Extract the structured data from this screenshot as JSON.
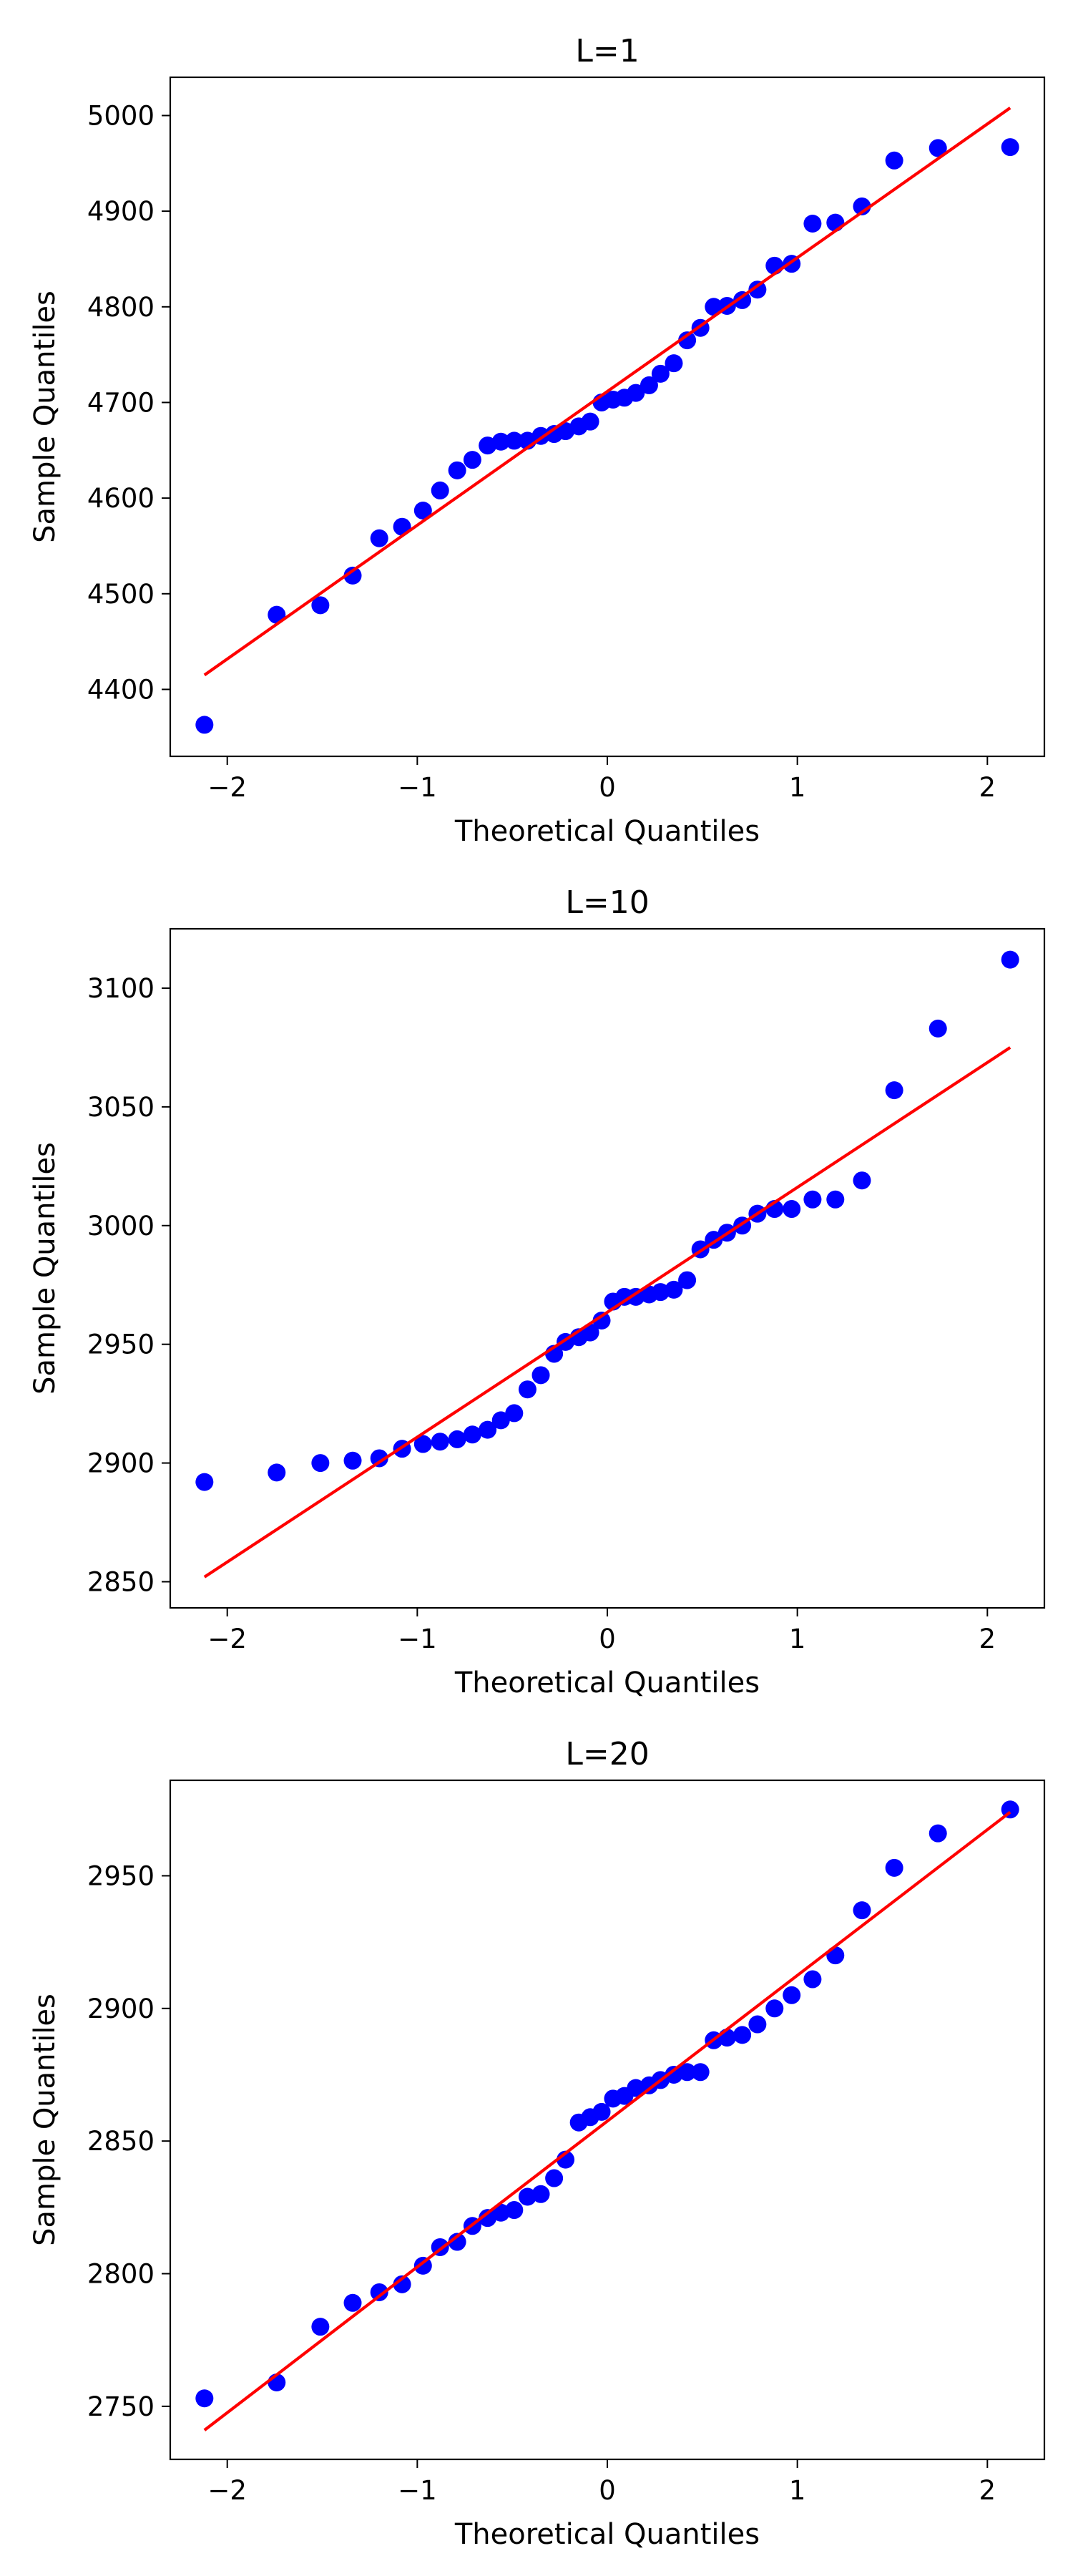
{
  "chart_data": [
    {
      "type": "scatter",
      "title": "L=1",
      "xlabel": "Theoretical Quantiles",
      "ylabel": "Sample Quantiles",
      "xlim": [
        -2.3,
        2.3
      ],
      "ylim": [
        4330,
        5040
      ],
      "xticks": [
        -2,
        -1,
        0,
        1,
        2
      ],
      "xtick_labels": [
        "−2",
        "−1",
        "0",
        "1",
        "2"
      ],
      "yticks": [
        4400,
        4500,
        4600,
        4700,
        4800,
        4900,
        5000
      ],
      "ytick_labels": [
        "4400",
        "4500",
        "4600",
        "4700",
        "4800",
        "4900",
        "5000"
      ],
      "point_color": "#0000ff",
      "line_color": "#ff0000",
      "reference_line": {
        "x": [
          -2.12,
          2.12
        ],
        "y": [
          4415,
          5008
        ]
      },
      "x": [
        -2.12,
        -1.74,
        -1.51,
        -1.34,
        -1.2,
        -1.08,
        -0.97,
        -0.88,
        -0.79,
        -0.71,
        -0.63,
        -0.56,
        -0.49,
        -0.42,
        -0.35,
        -0.28,
        -0.22,
        -0.15,
        -0.09,
        -0.03,
        0.03,
        0.09,
        0.15,
        0.22,
        0.28,
        0.35,
        0.42,
        0.49,
        0.56,
        0.63,
        0.71,
        0.79,
        0.88,
        0.97,
        1.08,
        1.2,
        1.34,
        1.51,
        1.74,
        2.12
      ],
      "y": [
        4363,
        4478,
        4488,
        4519,
        4558,
        4570,
        4587,
        4608,
        4629,
        4640,
        4655,
        4659,
        4660,
        4660,
        4665,
        4667,
        4670,
        4675,
        4680,
        4700,
        4703,
        4705,
        4710,
        4718,
        4730,
        4741,
        4765,
        4778,
        4800,
        4801,
        4807,
        4818,
        4843,
        4845,
        4887,
        4888,
        4905,
        4953,
        4966,
        4967
      ]
    },
    {
      "type": "scatter",
      "title": "L=10",
      "xlabel": "Theoretical Quantiles",
      "ylabel": "Sample Quantiles",
      "xlim": [
        -2.3,
        2.3
      ],
      "ylim": [
        2839,
        3125
      ],
      "xticks": [
        -2,
        -1,
        0,
        1,
        2
      ],
      "xtick_labels": [
        "−2",
        "−1",
        "0",
        "1",
        "2"
      ],
      "yticks": [
        2850,
        2900,
        2950,
        3000,
        3050,
        3100
      ],
      "ytick_labels": [
        "2850",
        "2900",
        "2950",
        "3000",
        "3050",
        "3100"
      ],
      "point_color": "#0000ff",
      "line_color": "#ff0000",
      "reference_line": {
        "x": [
          -2.12,
          2.12
        ],
        "y": [
          2852,
          3075
        ]
      },
      "x": [
        -2.12,
        -1.74,
        -1.51,
        -1.34,
        -1.2,
        -1.08,
        -0.97,
        -0.88,
        -0.79,
        -0.71,
        -0.63,
        -0.56,
        -0.49,
        -0.42,
        -0.35,
        -0.28,
        -0.22,
        -0.15,
        -0.09,
        -0.03,
        0.03,
        0.09,
        0.15,
        0.22,
        0.28,
        0.35,
        0.42,
        0.49,
        0.56,
        0.63,
        0.71,
        0.79,
        0.88,
        0.97,
        1.08,
        1.2,
        1.34,
        1.51,
        1.74,
        2.12
      ],
      "y": [
        2892,
        2896,
        2900,
        2901,
        2902,
        2906,
        2908,
        2909,
        2910,
        2912,
        2914,
        2918,
        2921,
        2931,
        2937,
        2946,
        2951,
        2953,
        2955,
        2960,
        2968,
        2970,
        2970,
        2971,
        2972,
        2973,
        2977,
        2990,
        2994,
        2997,
        3000,
        3005,
        3007,
        3007,
        3011,
        3011,
        3019,
        3057,
        3083,
        3112
      ]
    },
    {
      "type": "scatter",
      "title": "L=20",
      "xlabel": "Theoretical Quantiles",
      "ylabel": "Sample Quantiles",
      "xlim": [
        -2.3,
        2.3
      ],
      "ylim": [
        2730,
        2986
      ],
      "xticks": [
        -2,
        -1,
        0,
        1,
        2
      ],
      "xtick_labels": [
        "−2",
        "−1",
        "0",
        "1",
        "2"
      ],
      "yticks": [
        2750,
        2800,
        2850,
        2900,
        2950
      ],
      "ytick_labels": [
        "2750",
        "2800",
        "2850",
        "2900",
        "2950"
      ],
      "point_color": "#0000ff",
      "line_color": "#ff0000",
      "reference_line": {
        "x": [
          -2.12,
          2.12
        ],
        "y": [
          2741,
          2974
        ]
      },
      "x": [
        -2.12,
        -1.74,
        -1.51,
        -1.34,
        -1.2,
        -1.08,
        -0.97,
        -0.88,
        -0.79,
        -0.71,
        -0.63,
        -0.56,
        -0.49,
        -0.42,
        -0.35,
        -0.28,
        -0.22,
        -0.15,
        -0.09,
        -0.03,
        0.03,
        0.09,
        0.15,
        0.22,
        0.28,
        0.35,
        0.42,
        0.49,
        0.56,
        0.63,
        0.71,
        0.79,
        0.88,
        0.97,
        1.08,
        1.2,
        1.34,
        1.51,
        1.74,
        2.12
      ],
      "y": [
        2753,
        2759,
        2780,
        2789,
        2793,
        2796,
        2803,
        2810,
        2812,
        2818,
        2821,
        2823,
        2824,
        2829,
        2830,
        2836,
        2843,
        2857,
        2859,
        2861,
        2866,
        2867,
        2870,
        2871,
        2873,
        2875,
        2876,
        2876,
        2888,
        2889,
        2890,
        2894,
        2900,
        2905,
        2911,
        2920,
        2937,
        2953,
        2966,
        2975
      ]
    }
  ]
}
